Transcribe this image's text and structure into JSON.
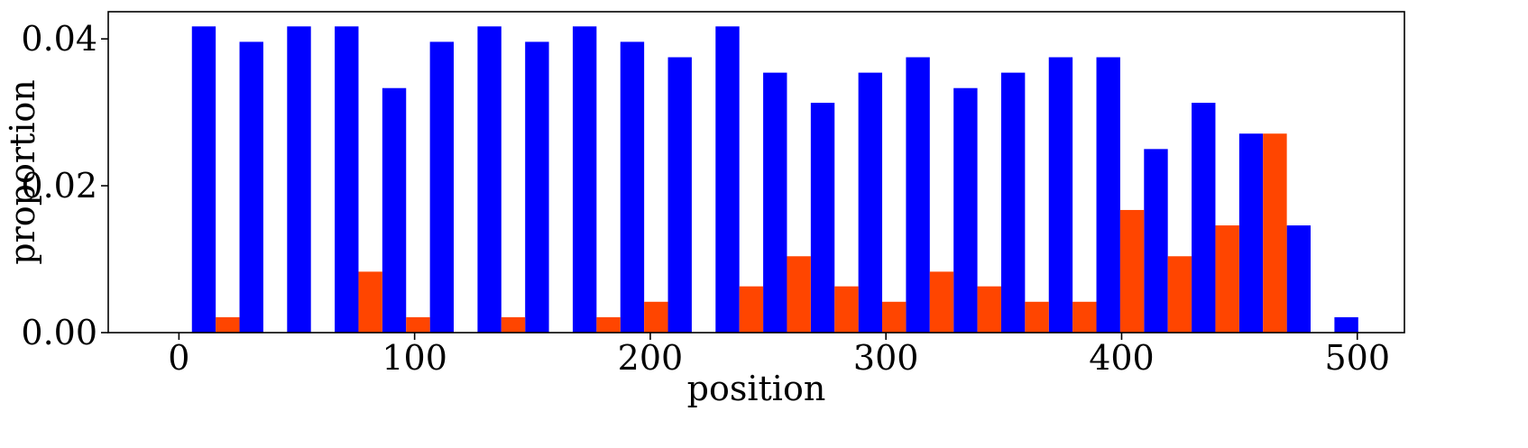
{
  "chart_data": {
    "type": "bar",
    "xlabel": "position",
    "ylabel": "proportion",
    "xlim": [
      -30,
      520
    ],
    "ylim": [
      0,
      0.0437
    ],
    "xticks": [
      0,
      100,
      200,
      300,
      400,
      500
    ],
    "xtick_labels": [
      "0",
      "100",
      "200",
      "300",
      "400",
      "500"
    ],
    "yticks": [
      0,
      0.02,
      0.04
    ],
    "ytick_labels": [
      "0.00",
      "0.02",
      "0.04"
    ],
    "grid": false,
    "bin_starts": [
      5.5,
      25.7,
      45.9,
      66.1,
      86.3,
      106.5,
      126.7,
      146.9,
      167.1,
      187.3,
      207.5,
      227.7,
      247.9,
      268.1,
      288.3,
      308.5,
      328.7,
      348.9,
      369.1,
      389.3,
      409.5,
      429.7,
      449.9,
      470.1,
      490.3
    ],
    "bin_width": 20.2,
    "series": [
      {
        "color": "#0000ff",
        "values": [
          0.0417,
          0.0396,
          0.0417,
          0.0417,
          0.0333,
          0.0396,
          0.0417,
          0.0396,
          0.0417,
          0.0396,
          0.0375,
          0.0417,
          0.0354,
          0.0313,
          0.0354,
          0.0375,
          0.0333,
          0.0354,
          0.0375,
          0.0375,
          0.025,
          0.0313,
          0.0271,
          0.0146,
          0.0021
        ]
      },
      {
        "color": "#ff4500",
        "values": [
          0.0021,
          0,
          0,
          0.0083,
          0.0021,
          0,
          0.0021,
          0,
          0.0021,
          0.0042,
          0,
          0.0063,
          0.0104,
          0.0063,
          0.0042,
          0.0083,
          0.0063,
          0.0042,
          0.0042,
          0.0167,
          0.0104,
          0.0146,
          0.0271,
          0,
          0
        ]
      }
    ]
  }
}
